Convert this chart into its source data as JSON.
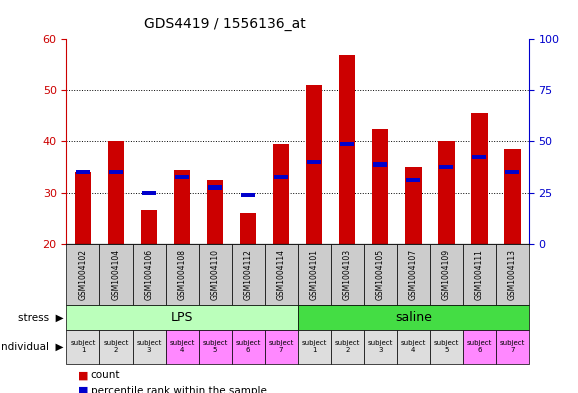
{
  "title": "GDS4419 / 1556136_at",
  "samples": [
    "GSM1004102",
    "GSM1004104",
    "GSM1004106",
    "GSM1004108",
    "GSM1004110",
    "GSM1004112",
    "GSM1004114",
    "GSM1004101",
    "GSM1004103",
    "GSM1004105",
    "GSM1004107",
    "GSM1004109",
    "GSM1004111",
    "GSM1004113"
  ],
  "counts": [
    34,
    40,
    26.5,
    34.5,
    32.5,
    26,
    39.5,
    51,
    57,
    42.5,
    35,
    40,
    45.5,
    38.5
  ],
  "percentiles": [
    34,
    34,
    30,
    33,
    31,
    29.5,
    33,
    36,
    39.5,
    35.5,
    32.5,
    35,
    37,
    34
  ],
  "ymin": 20,
  "ymax": 60,
  "yticks_left": [
    20,
    30,
    40,
    50,
    60
  ],
  "yticks_right": [
    0,
    25,
    50,
    75,
    100
  ],
  "bar_color": "#cc0000",
  "percentile_color": "#0000cc",
  "stress_groups": [
    {
      "label": "LPS",
      "start": 0,
      "end": 7,
      "color": "#bbffbb"
    },
    {
      "label": "saline",
      "start": 7,
      "end": 14,
      "color": "#44dd44"
    }
  ],
  "individual_labels": [
    "subject\n1",
    "subject\n2",
    "subject\n3",
    "subject\n4",
    "subject\n5",
    "subject\n6",
    "subject\n7",
    "subject\n1",
    "subject\n2",
    "subject\n3",
    "subject\n4",
    "subject\n5",
    "subject\n6",
    "subject\n7"
  ],
  "individual_colors": [
    "#dddddd",
    "#dddddd",
    "#dddddd",
    "#ff88ff",
    "#ff88ff",
    "#ff88ff",
    "#ff88ff",
    "#dddddd",
    "#dddddd",
    "#dddddd",
    "#dddddd",
    "#dddddd",
    "#ff88ff",
    "#ff88ff"
  ],
  "sample_bg_color": "#cccccc",
  "bar_width": 0.5,
  "legend_count_color": "#cc0000",
  "legend_percentile_color": "#0000cc"
}
